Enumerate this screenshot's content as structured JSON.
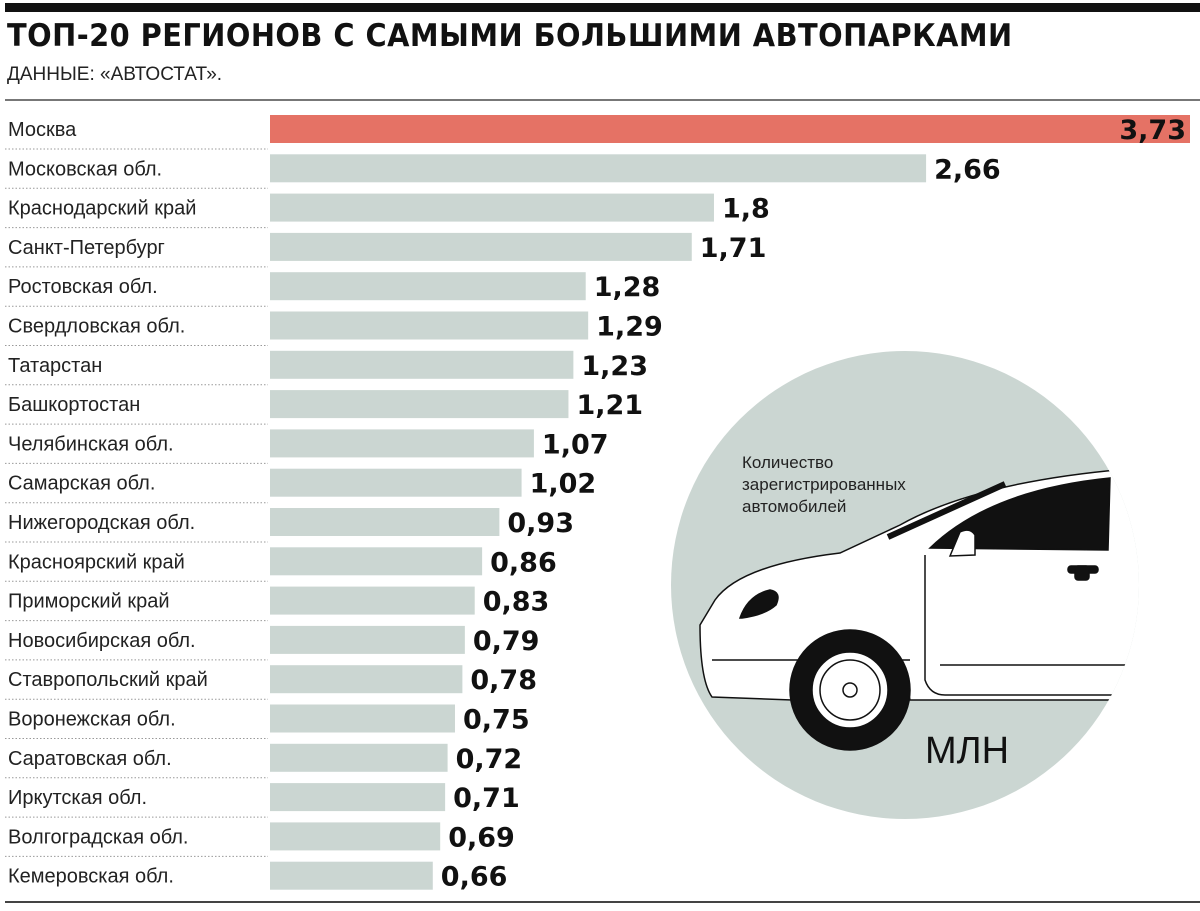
{
  "chart_data": {
    "type": "bar",
    "orientation": "horizontal",
    "title": "ТОП-20 РЕГИОНОВ С САМЫМИ БОЛЬШИМИ АВТОПАРКАМИ",
    "subtitle": "ДАННЫЕ: «АВТОСТАТ».",
    "annotation": "Количество зарегистрированных автомобилей",
    "annotation_lines": [
      "Количество",
      "зарегистрированных",
      "автомобилей"
    ],
    "unit": "МЛН",
    "categories": [
      "Москва",
      "Московская обл.",
      "Краснодарский край",
      "Санкт-Петербург",
      "Ростовская обл.",
      "Свердловская обл.",
      "Татарстан",
      "Башкортостан",
      "Челябинская обл.",
      "Самарская обл.",
      "Нижегородская обл.",
      "Красноярский край",
      "Приморский край",
      "Новосибирская обл.",
      "Ставропольский край",
      "Воронежская обл.",
      "Саратовская обл.",
      "Иркутская обл.",
      "Волгоградская обл.",
      "Кемеровская обл."
    ],
    "values": [
      3.73,
      2.66,
      1.8,
      1.71,
      1.28,
      1.29,
      1.23,
      1.21,
      1.07,
      1.02,
      0.93,
      0.86,
      0.83,
      0.79,
      0.78,
      0.75,
      0.72,
      0.71,
      0.69,
      0.66
    ],
    "value_labels": [
      "3,73",
      "2,66",
      "1,8",
      "1,71",
      "1,28",
      "1,29",
      "1,23",
      "1,21",
      "1,07",
      "1,02",
      "0,93",
      "0,86",
      "0,83",
      "0,79",
      "0,78",
      "0,75",
      "0,72",
      "0,71",
      "0,69",
      "0,66"
    ],
    "xlim": [
      0,
      3.73
    ],
    "grid": false,
    "legend": "none",
    "colors": {
      "highlight": "#e57265",
      "bar": "#cbd6d2",
      "circle": "#cbd6d2"
    }
  }
}
